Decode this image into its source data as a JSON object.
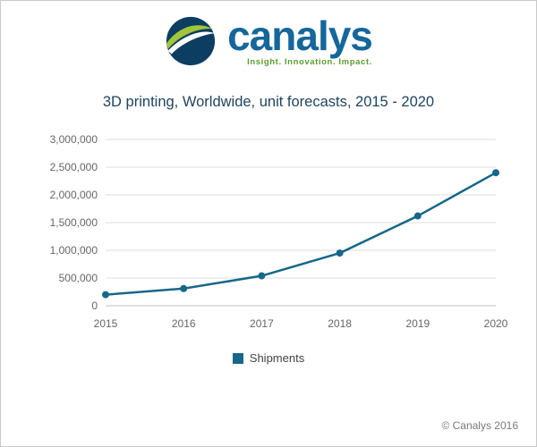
{
  "page": {
    "copyright": "© Canalys 2016"
  },
  "logo": {
    "brand": "canalys",
    "tagline": "Insight.  Innovation.  Impact."
  },
  "colors": {
    "accent": "#17678a",
    "grid": "#dcdcdc",
    "axis": "#c0c0c0",
    "tick_label": "#666666",
    "brand_blue": "#15679b",
    "brand_green": "#a3c53a",
    "globe_navy": "#0c3e62",
    "title_color": "#1f4460"
  },
  "chart_data": {
    "type": "line",
    "title": "3D printing, Worldwide, unit forecasts, 2015 - 2020",
    "categories": [
      "2015",
      "2016",
      "2017",
      "2018",
      "2019",
      "2020"
    ],
    "series": [
      {
        "name": "Shipments",
        "values": [
          200000,
          310000,
          540000,
          950000,
          1620000,
          2400000
        ]
      }
    ],
    "xlabel": "",
    "ylabel": "",
    "ylim": [
      0,
      3000000
    ],
    "ytick_step": 500000,
    "grid": true,
    "legend_position": "bottom"
  }
}
